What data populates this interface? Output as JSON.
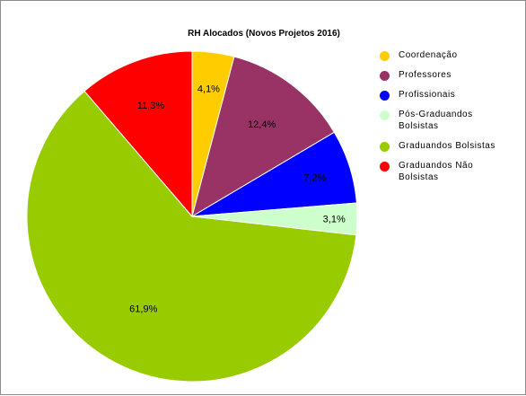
{
  "chart_data": {
    "type": "pie",
    "title": "RH Alocados (Novos Projetos 2016)",
    "slices": [
      {
        "label": "Coordenação",
        "value": 4.1,
        "display": "4,1%",
        "color": "#ffcc00"
      },
      {
        "label": "Professores",
        "value": 12.4,
        "display": "12,4%",
        "color": "#993366"
      },
      {
        "label": "Profissionais",
        "value": 7.2,
        "display": "7,2%",
        "color": "#0000ff"
      },
      {
        "label": "Pós-Graduandos Bolsistas",
        "value": 3.1,
        "display": "3,1%",
        "color": "#ccffcc"
      },
      {
        "label": "Graduandos Bolsistas",
        "value": 61.9,
        "display": "61,9%",
        "color": "#99cc00"
      },
      {
        "label": "Graduandos Não Bolsistas",
        "value": 11.3,
        "display": "11,3%",
        "color": "#ff0000"
      }
    ],
    "legend_position": "right"
  }
}
